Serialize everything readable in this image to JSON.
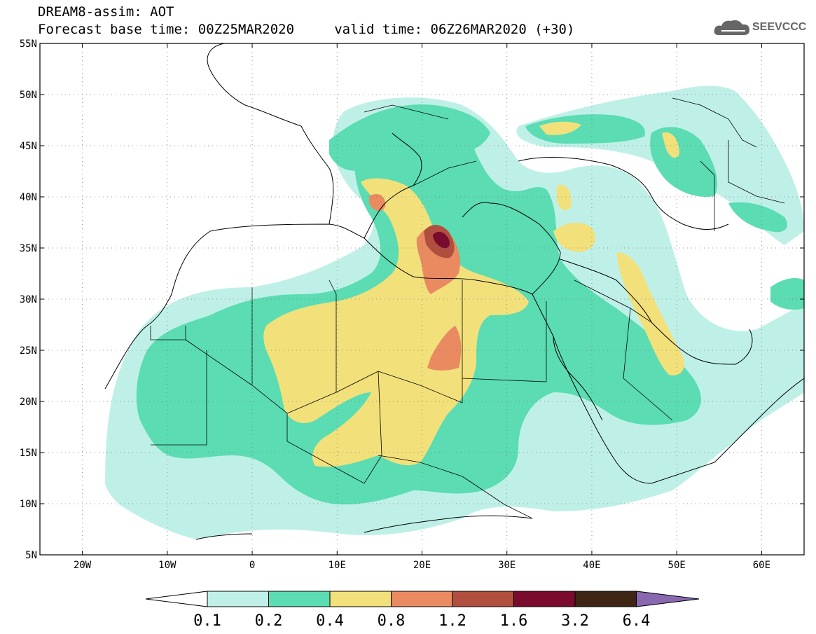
{
  "header": {
    "title_line1": "DREAM8-assim: AOT",
    "title_line2": "Forecast base time: 00Z25MAR2020     valid time: 06Z26MAR2020 (+30)"
  },
  "logo": {
    "text": "SEEVCCC",
    "icon": "cloud-logo-icon"
  },
  "map": {
    "lon_range": [
      -25,
      65
    ],
    "lat_range": [
      5,
      55
    ],
    "lat_ticks": [
      {
        "value": 55,
        "label": "55N"
      },
      {
        "value": 50,
        "label": "50N"
      },
      {
        "value": 45,
        "label": "45N"
      },
      {
        "value": 40,
        "label": "40N"
      },
      {
        "value": 35,
        "label": "35N"
      },
      {
        "value": 30,
        "label": "30N"
      },
      {
        "value": 25,
        "label": "25N"
      },
      {
        "value": 20,
        "label": "20N"
      },
      {
        "value": 15,
        "label": "15N"
      },
      {
        "value": 10,
        "label": "10N"
      },
      {
        "value": 5,
        "label": "5N"
      }
    ],
    "lon_ticks": [
      {
        "value": -20,
        "label": "20W"
      },
      {
        "value": -10,
        "label": "10W"
      },
      {
        "value": 0,
        "label": "0"
      },
      {
        "value": 10,
        "label": "10E"
      },
      {
        "value": 20,
        "label": "20E"
      },
      {
        "value": 30,
        "label": "30E"
      },
      {
        "value": 40,
        "label": "40E"
      },
      {
        "value": 50,
        "label": "50E"
      },
      {
        "value": 60,
        "label": "60E"
      }
    ],
    "grid": "dotted"
  },
  "colorbar": {
    "levels": [
      "0.1",
      "0.2",
      "0.4",
      "0.8",
      "1.2",
      "1.6",
      "3.2",
      "6.4"
    ],
    "colors": [
      "#bff0e8",
      "#5bdcb3",
      "#f2e17b",
      "#e98a61",
      "#b14f3f",
      "#7a0a2e",
      "#3e2514",
      "#8a68b0"
    ],
    "low_end_color": "#ffffff"
  }
}
